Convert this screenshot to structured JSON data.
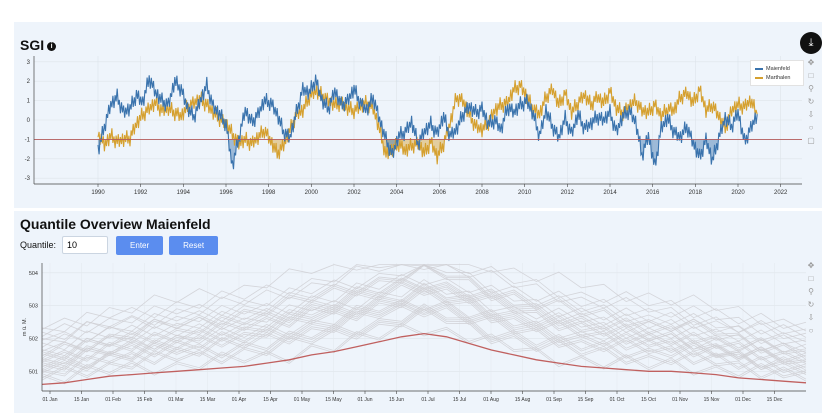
{
  "sgi_panel": {
    "title": "SGI",
    "info_icon": "info-icon",
    "download_icon": "download-icon"
  },
  "quantile_panel": {
    "title": "Quantile Overview Maienfeld",
    "quantile_label": "Quantile:",
    "quantile_value": "10",
    "enter_label": "Enter",
    "reset_label": "Reset"
  },
  "colors": {
    "maienfeld": "#3a73ad",
    "marthalen": "#d5a02f",
    "threshold": "#b45a5a",
    "quantile_line": "#c0605f",
    "background_lines": "#cfcfd4"
  },
  "toolbar_icons": [
    "pan-icon",
    "box-zoom-icon",
    "wheel-zoom-icon",
    "reset-icon",
    "save-icon",
    "hover-icon",
    "crosshair-icon"
  ],
  "chart_data": [
    {
      "type": "line",
      "title": "SGI",
      "xlabel": "",
      "ylabel": "",
      "xlim": [
        1987,
        2023
      ],
      "ylim": [
        -3.3,
        3.3
      ],
      "x_ticks": [
        "1990",
        "1992",
        "1994",
        "1996",
        "1998",
        "2000",
        "2002",
        "2004",
        "2006",
        "2008",
        "2010",
        "2012",
        "2014",
        "2016",
        "2018",
        "2020",
        "2022"
      ],
      "y_ticks": [
        "3",
        "2",
        "1",
        "0",
        "-1",
        "-2",
        "-3"
      ],
      "threshold": -1,
      "legend": [
        "Maienfeld",
        "Marthalen"
      ],
      "legend_position": "top-right",
      "series": [
        {
          "name": "Maienfeld",
          "x": [
            1990.0,
            1990.3,
            1990.6,
            1990.9,
            1991.2,
            1991.5,
            1991.8,
            1992.1,
            1992.4,
            1992.7,
            1993.0,
            1993.3,
            1993.6,
            1993.9,
            1994.2,
            1994.5,
            1994.8,
            1995.1,
            1995.4,
            1995.7,
            1996.0,
            1996.3,
            1996.6,
            1996.9,
            1997.2,
            1997.5,
            1997.8,
            1998.1,
            1998.4,
            1998.7,
            1999.0,
            1999.3,
            1999.6,
            1999.9,
            2000.2,
            2000.5,
            2000.8,
            2001.1,
            2001.4,
            2001.7,
            2002.0,
            2002.3,
            2002.6,
            2002.9,
            2003.2,
            2003.5,
            2003.8,
            2004.1,
            2004.4,
            2004.7,
            2005.0,
            2005.3,
            2005.6,
            2005.9,
            2006.2,
            2006.5,
            2006.8,
            2007.1,
            2007.4,
            2007.7,
            2008.0,
            2008.3,
            2008.6,
            2008.9,
            2009.2,
            2009.5,
            2009.8,
            2010.1,
            2010.4,
            2010.7,
            2011.0,
            2011.3,
            2011.6,
            2011.9,
            2012.2,
            2012.5,
            2012.8,
            2013.1,
            2013.4,
            2013.7,
            2014.0,
            2014.3,
            2014.6,
            2014.9,
            2015.2,
            2015.5,
            2015.8,
            2016.1,
            2016.4,
            2016.7,
            2017.0,
            2017.3,
            2017.6,
            2017.9,
            2018.2,
            2018.5,
            2018.8,
            2019.1,
            2019.4,
            2019.7,
            2020.0,
            2020.3,
            2020.6,
            2020.9
          ],
          "values": [
            -1.6,
            -0.3,
            0.8,
            1.2,
            0.4,
            0.6,
            1.3,
            0.9,
            2.2,
            1.4,
            1.0,
            0.8,
            2.0,
            1.6,
            0.6,
            0.2,
            1.0,
            1.8,
            0.7,
            0.3,
            -0.2,
            -2.4,
            -0.9,
            0.5,
            -0.1,
            0.3,
            1.0,
            0.9,
            0.3,
            -0.6,
            -0.9,
            0.4,
            1.6,
            1.4,
            2.1,
            1.0,
            0.6,
            1.5,
            0.8,
            1.0,
            1.6,
            0.9,
            0.5,
            1.2,
            0.0,
            -1.0,
            -1.8,
            -0.8,
            -0.6,
            -0.1,
            -1.2,
            -0.6,
            -0.2,
            -0.7,
            0.2,
            -0.8,
            -0.5,
            0.3,
            0.7,
            0.4,
            0.6,
            -0.2,
            0.0,
            -0.5,
            0.7,
            0.4,
            0.8,
            1.0,
            0.3,
            -0.8,
            0.5,
            -0.3,
            -0.9,
            0.1,
            -0.7,
            0.3,
            -0.4,
            -0.2,
            0.2,
            0.0,
            0.4,
            -0.6,
            0.2,
            0.5,
            -0.1,
            -1.8,
            -0.8,
            -2.4,
            -0.4,
            0.1,
            -0.6,
            -0.9,
            -0.3,
            -1.2,
            -1.9,
            -1.0,
            -2.1,
            -0.9,
            0.1,
            -0.3,
            0.4,
            -1.1,
            -0.4,
            0.3
          ]
        },
        {
          "name": "Marthalen",
          "x": [
            1990.0,
            1990.3,
            1990.6,
            1990.9,
            1991.2,
            1991.5,
            1991.8,
            1992.1,
            1992.4,
            1992.7,
            1993.0,
            1993.3,
            1993.6,
            1993.9,
            1994.2,
            1994.5,
            1994.8,
            1995.1,
            1995.4,
            1995.7,
            1996.0,
            1996.3,
            1996.6,
            1996.9,
            1997.2,
            1997.5,
            1997.8,
            1998.1,
            1998.4,
            1998.7,
            1999.0,
            1999.3,
            1999.6,
            1999.9,
            2000.2,
            2000.5,
            2000.8,
            2001.1,
            2001.4,
            2001.7,
            2002.0,
            2002.3,
            2002.6,
            2002.9,
            2003.2,
            2003.5,
            2003.8,
            2004.1,
            2004.4,
            2004.7,
            2005.0,
            2005.3,
            2005.6,
            2005.9,
            2006.2,
            2006.5,
            2006.8,
            2007.1,
            2007.4,
            2007.7,
            2008.0,
            2008.3,
            2008.6,
            2008.9,
            2009.2,
            2009.5,
            2009.8,
            2010.1,
            2010.4,
            2010.7,
            2011.0,
            2011.3,
            2011.6,
            2011.9,
            2012.2,
            2012.5,
            2012.8,
            2013.1,
            2013.4,
            2013.7,
            2014.0,
            2014.3,
            2014.6,
            2014.9,
            2015.2,
            2015.5,
            2015.8,
            2016.1,
            2016.4,
            2016.7,
            2017.0,
            2017.3,
            2017.6,
            2017.9,
            2018.2,
            2018.5,
            2018.8,
            2019.1,
            2019.4,
            2019.7,
            2020.0,
            2020.3,
            2020.6,
            2020.9
          ],
          "values": [
            -0.6,
            -1.3,
            -0.8,
            -1.1,
            -1.0,
            -0.9,
            -0.2,
            0.3,
            0.6,
            0.9,
            0.5,
            0.6,
            0.4,
            0.2,
            0.7,
            0.9,
            1.1,
            0.8,
            0.4,
            0.1,
            -0.2,
            -0.7,
            -1.2,
            -1.0,
            -1.2,
            -0.9,
            -0.5,
            -1.1,
            -1.7,
            -1.3,
            -0.5,
            0.3,
            0.5,
            1.2,
            1.5,
            1.3,
            1.0,
            0.8,
            0.9,
            0.6,
            0.5,
            0.7,
            0.9,
            0.6,
            -0.5,
            -1.8,
            -1.5,
            -1.2,
            -1.6,
            -1.3,
            -1.2,
            -1.7,
            -1.1,
            -1.9,
            -1.2,
            -0.2,
            1.2,
            1.0,
            0.3,
            -0.3,
            -0.5,
            -0.1,
            0.5,
            0.8,
            0.9,
            1.6,
            1.8,
            1.2,
            0.6,
            0.3,
            1.2,
            1.6,
            0.8,
            1.4,
            0.4,
            0.9,
            1.3,
            0.8,
            1.2,
            0.9,
            1.5,
            0.6,
            0.4,
            0.7,
            1.0,
            0.5,
            0.4,
            0.8,
            0.2,
            0.6,
            0.5,
            1.2,
            1.4,
            0.9,
            1.6,
            0.5,
            0.8,
            0.2,
            -0.4,
            0.5,
            0.8,
            0.7,
            1.0,
            0.3
          ]
        }
      ]
    },
    {
      "type": "line",
      "title": "Quantile Overview Maienfeld",
      "xlabel": "",
      "ylabel": "m ü. M.",
      "ylim": [
        500.4,
        504.3
      ],
      "x_ticks": [
        "01 Jan",
        "15 Jan",
        "01 Feb",
        "15 Feb",
        "01 Mar",
        "15 Mar",
        "01 Apr",
        "15 Apr",
        "01 May",
        "15 May",
        "01 Jun",
        "15 Jun",
        "01 Jul",
        "15 Jul",
        "01 Aug",
        "15 Aug",
        "01 Sep",
        "15 Sep",
        "01 Oct",
        "15 Oct",
        "01 Nov",
        "15 Nov",
        "01 Dec",
        "15 Dec"
      ],
      "y_ticks": [
        "504",
        "503",
        "502",
        "501"
      ],
      "highlight_series": {
        "name": "Quantile 10",
        "values": [
          500.6,
          500.65,
          500.75,
          500.85,
          500.9,
          500.95,
          501.0,
          501.05,
          501.1,
          501.15,
          501.25,
          501.35,
          501.5,
          501.6,
          501.75,
          501.9,
          502.05,
          502.15,
          502.05,
          501.85,
          501.65,
          501.5,
          501.35,
          501.25,
          501.15,
          501.1,
          501.05,
          501.0,
          501.0,
          500.95,
          500.9,
          500.8,
          500.75,
          500.7,
          500.65
        ]
      },
      "background_series_count": 30
    }
  ]
}
